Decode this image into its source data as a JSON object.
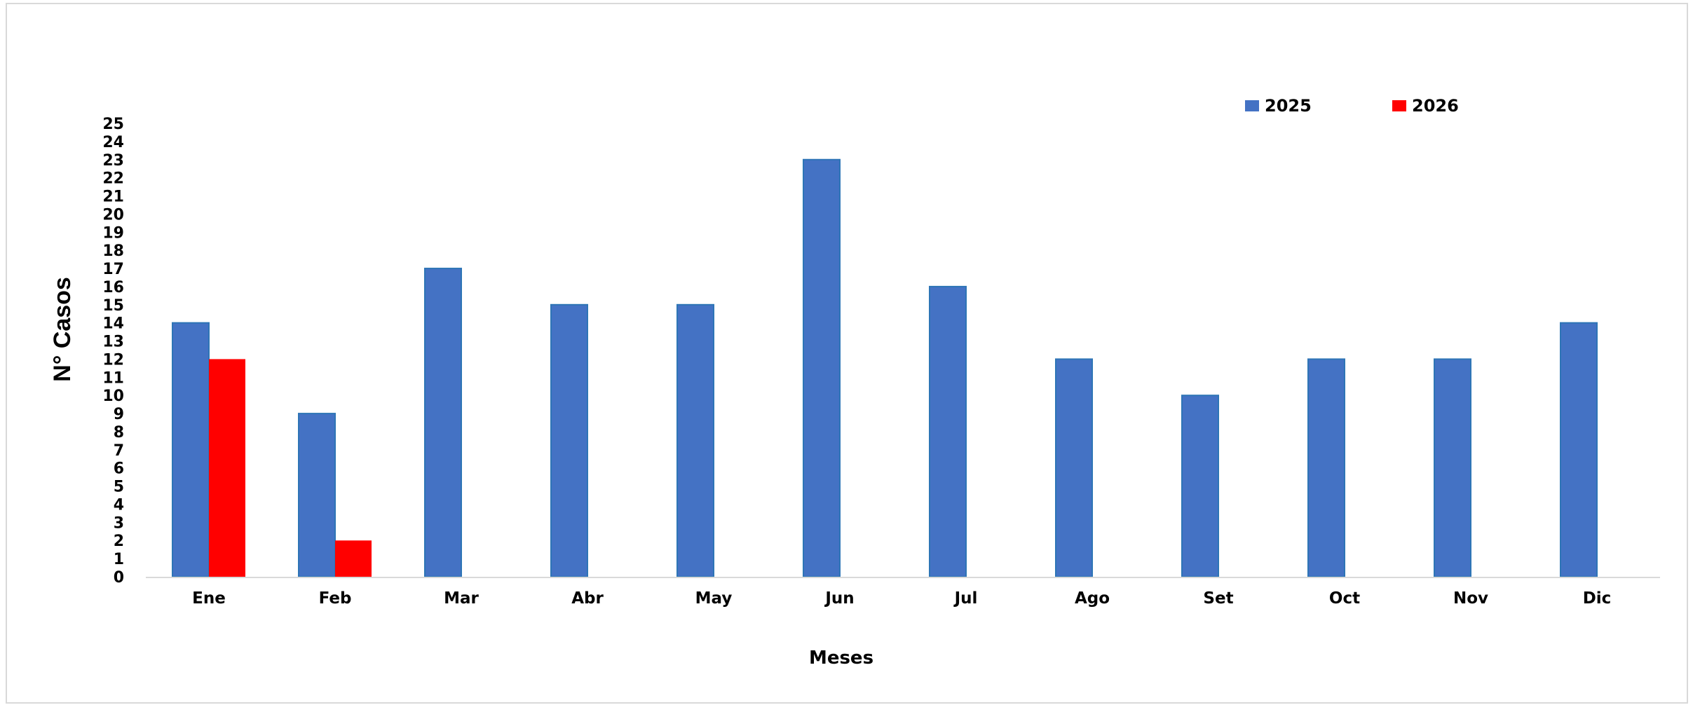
{
  "chart_data": {
    "type": "bar",
    "title": "",
    "xlabel": "Meses",
    "ylabel": "N° Casos",
    "categories": [
      "Ene",
      "Feb",
      "Mar",
      "Abr",
      "May",
      "Jun",
      "Jul",
      "Ago",
      "Set",
      "Oct",
      "Nov",
      "Dic"
    ],
    "series": [
      {
        "name": "2025",
        "color": "#4472C4",
        "values": [
          14,
          9,
          17,
          15,
          15,
          23,
          16,
          12,
          10,
          12,
          12,
          14
        ]
      },
      {
        "name": "2026",
        "color": "#FF0000",
        "values": [
          12,
          2,
          null,
          null,
          null,
          null,
          null,
          null,
          null,
          null,
          null,
          null
        ]
      }
    ],
    "ylim": [
      0,
      25
    ],
    "yticks": [
      0,
      1,
      2,
      3,
      4,
      5,
      6,
      7,
      8,
      9,
      10,
      11,
      12,
      13,
      14,
      15,
      16,
      17,
      18,
      19,
      20,
      21,
      22,
      23,
      24,
      25
    ],
    "grid": false,
    "legend": "top-right"
  }
}
